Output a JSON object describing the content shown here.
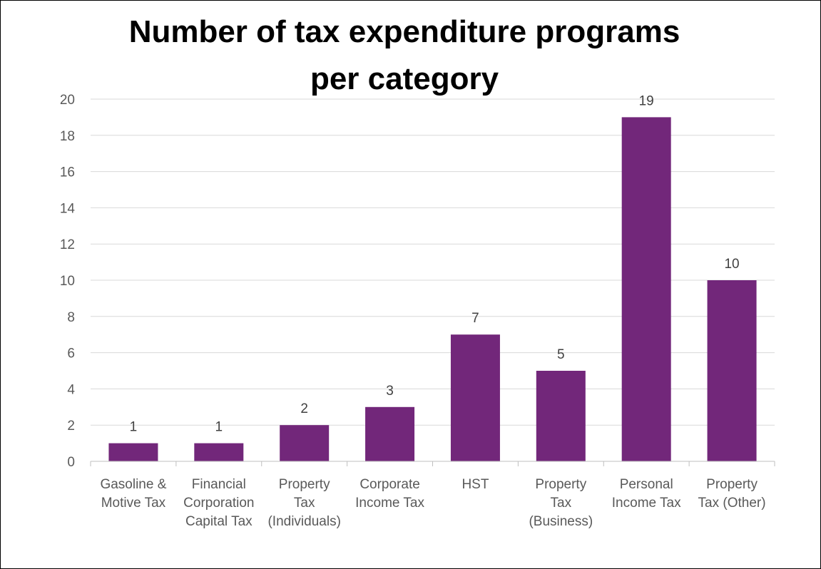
{
  "chart_data": {
    "type": "bar",
    "title": [
      "Number of tax expenditure programs",
      "per category"
    ],
    "categories": [
      [
        "Gasoline &",
        "Motive Tax"
      ],
      [
        "Financial",
        "Corporation",
        "Capital Tax"
      ],
      [
        "Property",
        "Tax",
        "(Individuals)"
      ],
      [
        "Corporate",
        "Income Tax"
      ],
      [
        "HST"
      ],
      [
        "Property",
        "Tax",
        "(Business)"
      ],
      [
        "Personal",
        "Income Tax"
      ],
      [
        "Property",
        "Tax (Other)"
      ]
    ],
    "values": [
      1,
      1,
      2,
      3,
      7,
      5,
      19,
      10
    ],
    "ylim": [
      0,
      20
    ],
    "yticks": [
      0,
      2,
      4,
      6,
      8,
      10,
      12,
      14,
      16,
      18,
      20
    ],
    "xlabel": "",
    "ylabel": "",
    "grid": true,
    "legend": "none",
    "bar_color": "#72277a",
    "data_labels": true
  }
}
